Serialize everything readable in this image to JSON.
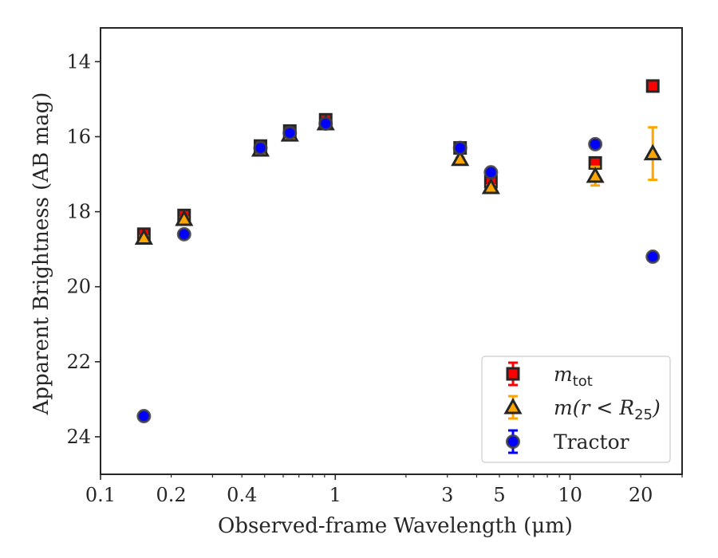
{
  "chart_data": {
    "type": "scatter",
    "title": "",
    "xlabel": "Observed-frame Wavelength (μm)",
    "ylabel": "Apparent Brightness (AB mag)",
    "xscale": "log",
    "xlim": [
      0.1,
      30
    ],
    "ylim": [
      25.0,
      13.1
    ],
    "y_inverted": true,
    "xticks": [
      0.1,
      0.2,
      0.4,
      1,
      3,
      5,
      10,
      20
    ],
    "xtick_labels": [
      "0.1",
      "0.2",
      "0.4",
      "1",
      "3",
      "5",
      "10",
      "20"
    ],
    "yticks": [
      14,
      16,
      18,
      20,
      22,
      24
    ],
    "ytick_labels": [
      "14",
      "16",
      "18",
      "20",
      "22",
      "24"
    ],
    "grid": false,
    "legend_position": "bottom-right",
    "series": [
      {
        "key": "mtot",
        "legend_label": "m",
        "legend_label_sub": "tot",
        "marker": "square",
        "face_color": "#ff0000",
        "edge_color": "#262626",
        "error_color": "#ff0000",
        "x": [
          0.153,
          0.227,
          0.48,
          0.64,
          0.91,
          3.4,
          4.6,
          12.8,
          22.5
        ],
        "y": [
          18.6,
          18.1,
          16.25,
          15.85,
          15.55,
          16.3,
          17.2,
          16.7,
          14.65
        ],
        "yerr": [
          0.04,
          0.04,
          0.03,
          0.03,
          0.03,
          0.03,
          0.05,
          0.08,
          0.07
        ]
      },
      {
        "key": "mr25",
        "legend_label": "m(r < R",
        "legend_label_sub": "25",
        "legend_label_end": ")",
        "marker": "triangle",
        "face_color": "#ffa500",
        "edge_color": "#262626",
        "error_color": "#ffa500",
        "x": [
          0.153,
          0.227,
          0.48,
          0.64,
          0.91,
          3.4,
          4.6,
          12.8,
          22.5
        ],
        "y": [
          18.7,
          18.2,
          16.35,
          15.95,
          15.65,
          16.6,
          17.35,
          17.05,
          16.45
        ],
        "yerr": [
          0.04,
          0.04,
          0.03,
          0.03,
          0.03,
          0.04,
          0.05,
          0.25,
          0.7
        ]
      },
      {
        "key": "tractor",
        "legend_label": "Tractor",
        "marker": "circle",
        "face_color": "#0000ff",
        "edge_color": "#404040",
        "error_color": "#0000ff",
        "x": [
          0.153,
          0.227,
          0.48,
          0.64,
          0.91,
          3.4,
          4.6,
          12.8,
          22.5
        ],
        "y": [
          23.45,
          18.6,
          16.3,
          15.9,
          15.65,
          16.3,
          16.95,
          16.2,
          19.2
        ],
        "yerr": [
          0.05,
          0.05,
          0.03,
          0.03,
          0.03,
          0.03,
          0.04,
          0.05,
          0.08
        ]
      }
    ]
  }
}
